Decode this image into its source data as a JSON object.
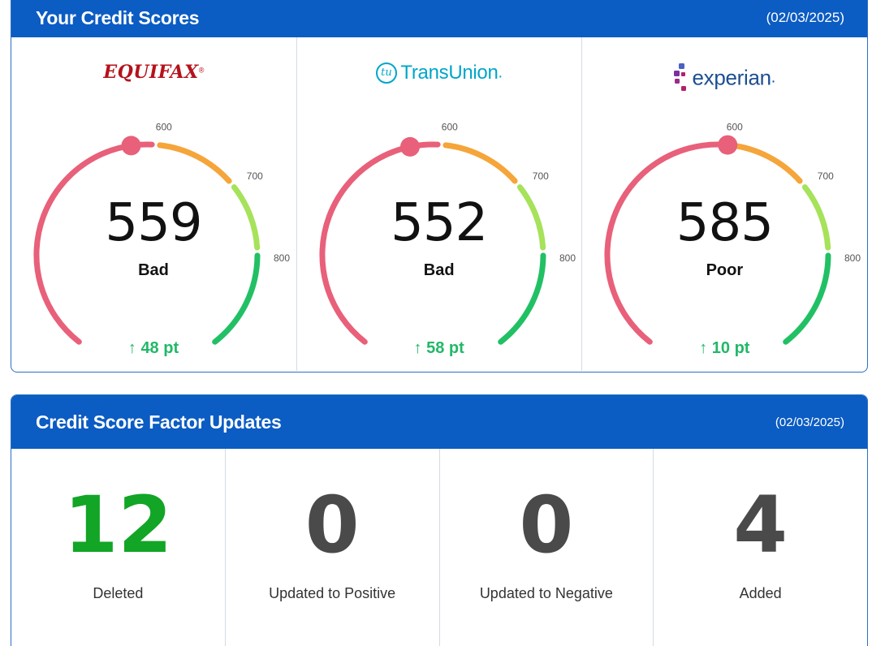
{
  "scores_panel": {
    "title": "Your Credit Scores",
    "date": "(02/03/2025)"
  },
  "gauge_ticks": [
    "600",
    "700",
    "800"
  ],
  "bureaus": [
    {
      "logo_text": "EQUIFAX",
      "logo_suffix": "®",
      "score": "559",
      "score_value": 559,
      "rating": "Bad",
      "change": "48 pt",
      "logo_color": "#b5121b"
    },
    {
      "logo_text": "TransUnion",
      "logo_mark": "tu",
      "logo_suffix": ".",
      "score": "552",
      "score_value": 552,
      "rating": "Bad",
      "change": "58 pt",
      "logo_color": "#00a6ca"
    },
    {
      "logo_text": "experian",
      "logo_suffix": ".",
      "score": "585",
      "score_value": 585,
      "rating": "Poor",
      "change": "10 pt",
      "logo_color": "#1d4f91"
    }
  ],
  "gauge_colors": {
    "red": "#e8607a",
    "orange": "#f5a53a",
    "green_light": "#a6e25a",
    "green": "#22c065"
  },
  "factors_panel": {
    "title": "Credit Score Factor Updates",
    "date": "(02/03/2025)"
  },
  "factors": [
    {
      "count": "12",
      "label": "Deleted",
      "color": "#12a526"
    },
    {
      "count": "0",
      "label": "Updated to Positive",
      "color": "#4a4a4a"
    },
    {
      "count": "0",
      "label": "Updated to Negative",
      "color": "#4a4a4a"
    },
    {
      "count": "4",
      "label": "Added",
      "color": "#4a4a4a"
    }
  ]
}
